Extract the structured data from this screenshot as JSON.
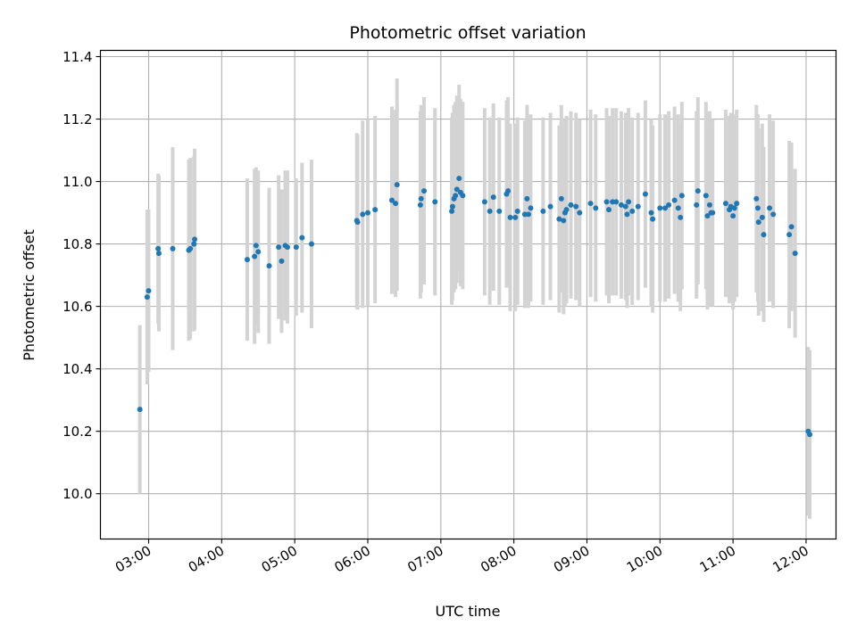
{
  "chart_data": {
    "type": "scatter",
    "title": "Photometric offset variation",
    "xlabel": "UTC time",
    "ylabel": "Photometric offset",
    "x_tick_labels": [
      "03:00",
      "04:00",
      "05:00",
      "06:00",
      "07:00",
      "08:00",
      "09:00",
      "10:00",
      "11:00",
      "12:00"
    ],
    "y_tick_labels": [
      "10.0",
      "10.2",
      "10.4",
      "10.6",
      "10.8",
      "11.0",
      "11.2",
      "11.4"
    ],
    "y_ticks": [
      10.0,
      10.2,
      10.4,
      10.6,
      10.8,
      11.0,
      11.2,
      11.4
    ],
    "x_ticks_hours": [
      3,
      4,
      5,
      6,
      7,
      8,
      9,
      10,
      11,
      12
    ],
    "xlim_hours": [
      2.34,
      12.41
    ],
    "ylim": [
      9.855,
      11.42
    ],
    "grid": true,
    "point_color": "#1f77b4",
    "errorbar_color": "#d3d3d3",
    "points": [
      [
        2.88,
        10.27,
        0.27
      ],
      [
        2.98,
        10.63,
        0.28
      ],
      [
        3.0,
        10.65,
        0.26
      ],
      [
        3.13,
        10.785,
        0.24
      ],
      [
        3.14,
        10.77,
        0.25
      ],
      [
        3.33,
        10.785,
        0.325
      ],
      [
        3.55,
        10.78,
        0.29
      ],
      [
        3.57,
        10.785,
        0.29
      ],
      [
        3.62,
        10.8,
        0.28
      ],
      [
        3.63,
        10.815,
        0.29
      ],
      [
        4.35,
        10.75,
        0.26
      ],
      [
        4.45,
        10.76,
        0.28
      ],
      [
        4.47,
        10.795,
        0.25
      ],
      [
        4.5,
        10.775,
        0.26
      ],
      [
        4.65,
        10.73,
        0.25
      ],
      [
        4.78,
        10.79,
        0.23
      ],
      [
        4.82,
        10.745,
        0.23
      ],
      [
        4.87,
        10.795,
        0.24
      ],
      [
        4.9,
        10.79,
        0.245
      ],
      [
        5.02,
        10.79,
        0.22
      ],
      [
        5.1,
        10.82,
        0.24
      ],
      [
        5.23,
        10.8,
        0.27
      ],
      [
        5.85,
        10.875,
        0.28
      ],
      [
        5.86,
        10.87,
        0.28
      ],
      [
        5.93,
        10.895,
        0.3
      ],
      [
        6.0,
        10.9,
        0.3
      ],
      [
        6.1,
        10.91,
        0.3
      ],
      [
        6.33,
        10.94,
        0.3
      ],
      [
        6.38,
        10.93,
        0.3
      ],
      [
        6.4,
        10.99,
        0.34
      ],
      [
        6.72,
        10.925,
        0.3
      ],
      [
        6.73,
        10.945,
        0.3
      ],
      [
        6.77,
        10.97,
        0.3
      ],
      [
        6.92,
        10.935,
        0.3
      ],
      [
        7.15,
        10.905,
        0.3
      ],
      [
        7.16,
        10.92,
        0.3
      ],
      [
        7.18,
        10.945,
        0.3
      ],
      [
        7.2,
        10.955,
        0.3
      ],
      [
        7.22,
        10.975,
        0.3
      ],
      [
        7.25,
        11.01,
        0.3
      ],
      [
        7.27,
        10.965,
        0.3
      ],
      [
        7.3,
        10.955,
        0.3
      ],
      [
        7.6,
        10.935,
        0.3
      ],
      [
        7.67,
        10.905,
        0.3
      ],
      [
        7.72,
        10.95,
        0.3
      ],
      [
        7.8,
        10.905,
        0.3
      ],
      [
        7.9,
        10.96,
        0.3
      ],
      [
        7.92,
        10.97,
        0.3
      ],
      [
        7.95,
        10.885,
        0.3
      ],
      [
        8.02,
        10.885,
        0.3
      ],
      [
        8.05,
        10.905,
        0.3
      ],
      [
        8.15,
        10.895,
        0.3
      ],
      [
        8.18,
        10.945,
        0.3
      ],
      [
        8.2,
        10.895,
        0.3
      ],
      [
        8.23,
        10.915,
        0.3
      ],
      [
        8.4,
        10.905,
        0.3
      ],
      [
        8.5,
        10.92,
        0.3
      ],
      [
        8.62,
        10.88,
        0.3
      ],
      [
        8.65,
        10.945,
        0.3
      ],
      [
        8.68,
        10.875,
        0.3
      ],
      [
        8.7,
        10.9,
        0.3
      ],
      [
        8.72,
        10.91,
        0.3
      ],
      [
        8.78,
        10.925,
        0.3
      ],
      [
        8.85,
        10.92,
        0.3
      ],
      [
        8.9,
        10.9,
        0.3
      ],
      [
        9.05,
        10.93,
        0.3
      ],
      [
        9.12,
        10.915,
        0.3
      ],
      [
        9.27,
        10.935,
        0.3
      ],
      [
        9.3,
        10.91,
        0.3
      ],
      [
        9.35,
        10.935,
        0.3
      ],
      [
        9.4,
        10.935,
        0.3
      ],
      [
        9.47,
        10.925,
        0.3
      ],
      [
        9.53,
        10.92,
        0.3
      ],
      [
        9.55,
        10.895,
        0.3
      ],
      [
        9.57,
        10.935,
        0.3
      ],
      [
        9.62,
        10.905,
        0.3
      ],
      [
        9.7,
        10.92,
        0.3
      ],
      [
        9.8,
        10.96,
        0.3
      ],
      [
        9.88,
        10.9,
        0.3
      ],
      [
        9.9,
        10.88,
        0.3
      ],
      [
        10.0,
        10.915,
        0.3
      ],
      [
        10.07,
        10.915,
        0.3
      ],
      [
        10.12,
        10.925,
        0.3
      ],
      [
        10.2,
        10.94,
        0.3
      ],
      [
        10.25,
        10.915,
        0.3
      ],
      [
        10.28,
        10.885,
        0.3
      ],
      [
        10.3,
        10.955,
        0.3
      ],
      [
        10.5,
        10.925,
        0.3
      ],
      [
        10.52,
        10.97,
        0.3
      ],
      [
        10.63,
        10.955,
        0.3
      ],
      [
        10.65,
        10.89,
        0.3
      ],
      [
        10.68,
        10.925,
        0.3
      ],
      [
        10.7,
        10.9,
        0.3
      ],
      [
        10.72,
        10.9,
        0.3
      ],
      [
        10.9,
        10.93,
        0.3
      ],
      [
        10.95,
        10.91,
        0.3
      ],
      [
        10.97,
        10.92,
        0.3
      ],
      [
        11.0,
        10.89,
        0.3
      ],
      [
        11.02,
        10.915,
        0.3
      ],
      [
        11.05,
        10.93,
        0.3
      ],
      [
        11.32,
        10.945,
        0.3
      ],
      [
        11.34,
        10.915,
        0.3
      ],
      [
        11.35,
        10.87,
        0.3
      ],
      [
        11.4,
        10.885,
        0.3
      ],
      [
        11.42,
        10.83,
        0.28
      ],
      [
        11.5,
        10.915,
        0.3
      ],
      [
        11.55,
        10.895,
        0.3
      ],
      [
        11.77,
        10.83,
        0.3
      ],
      [
        11.8,
        10.855,
        0.27
      ],
      [
        11.85,
        10.77,
        0.27
      ],
      [
        12.03,
        10.2,
        0.27
      ],
      [
        12.05,
        10.19,
        0.27
      ]
    ]
  }
}
